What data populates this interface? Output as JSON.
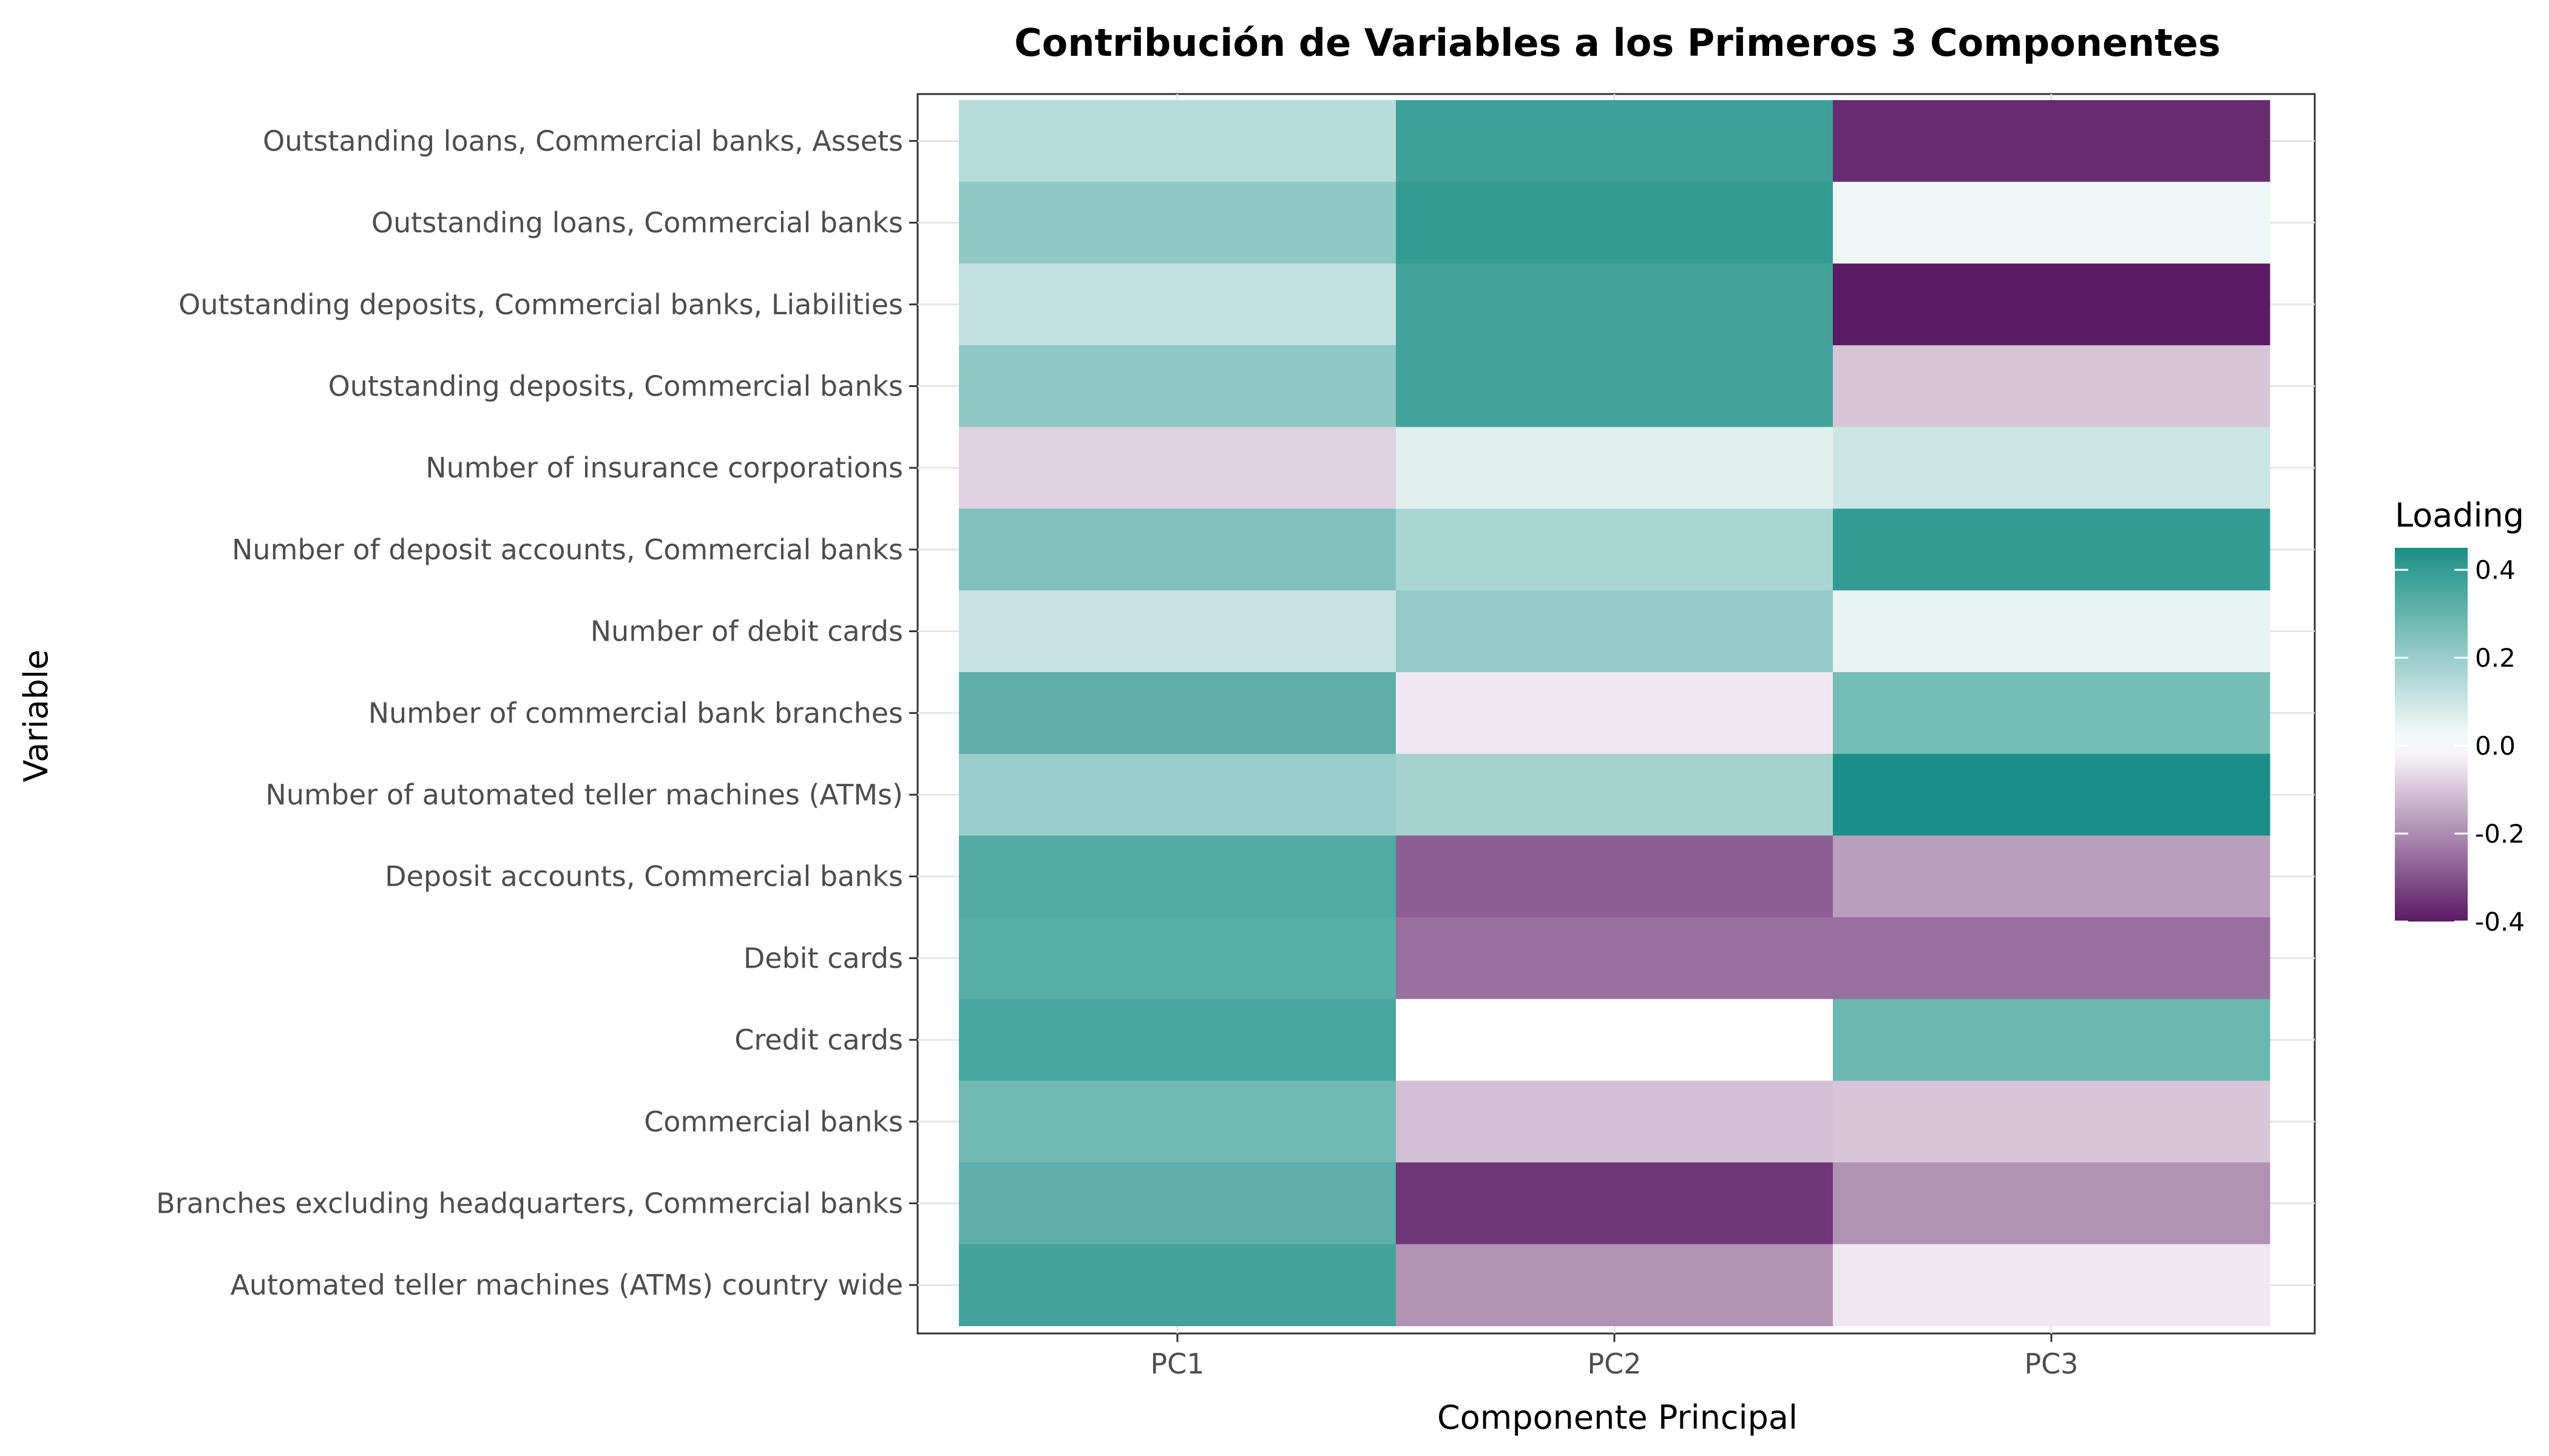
{
  "chart_data": {
    "type": "heatmap",
    "title": "Contribución de Variables a los Primeros 3 Componentes",
    "xlabel": "Componente Principal",
    "ylabel": "Variable",
    "x": [
      "PC1",
      "PC2",
      "PC3"
    ],
    "y": [
      "Outstanding loans, Commercial banks, Assets",
      "Outstanding loans, Commercial banks",
      "Outstanding deposits, Commercial banks, Liabilities",
      "Outstanding deposits, Commercial banks",
      "Number of insurance corporations",
      "Number of deposit accounts, Commercial banks",
      "Number of debit cards",
      "Number of commercial bank branches",
      "Number of automated teller machines (ATMs)",
      "Deposit accounts, Commercial banks",
      "Debit cards",
      "Credit cards",
      "Commercial banks",
      "Branches excluding headquarters, Commercial banks",
      "Automated teller machines (ATMs) country wide"
    ],
    "values": [
      [
        0.14,
        0.38,
        -0.37
      ],
      [
        0.22,
        0.4,
        0.03
      ],
      [
        0.12,
        0.37,
        -0.4
      ],
      [
        0.22,
        0.37,
        -0.1
      ],
      [
        -0.08,
        0.06,
        0.1
      ],
      [
        0.25,
        0.17,
        0.4
      ],
      [
        0.11,
        0.21,
        0.05
      ],
      [
        0.32,
        -0.04,
        0.27
      ],
      [
        0.2,
        0.18,
        0.45
      ],
      [
        0.34,
        -0.28,
        -0.17
      ],
      [
        0.33,
        -0.25,
        -0.25
      ],
      [
        0.36,
        0.0,
        0.29
      ],
      [
        0.28,
        -0.11,
        -0.1
      ],
      [
        0.32,
        -0.35,
        -0.19
      ],
      [
        0.37,
        -0.19,
        -0.04
      ]
    ],
    "colorbar": {
      "title": "Loading",
      "min": -0.4,
      "max": 0.45,
      "ticks": [
        0.4,
        0.2,
        0.0,
        -0.2,
        -0.4
      ],
      "tick_labels": [
        "0.4",
        "0.2",
        "0.0",
        "-0.2",
        "-0.4"
      ],
      "low_color": "#5a1a64",
      "mid_color": "#ffffff",
      "high_color": "#1a8f87",
      "placement": "right"
    },
    "grid": true
  }
}
